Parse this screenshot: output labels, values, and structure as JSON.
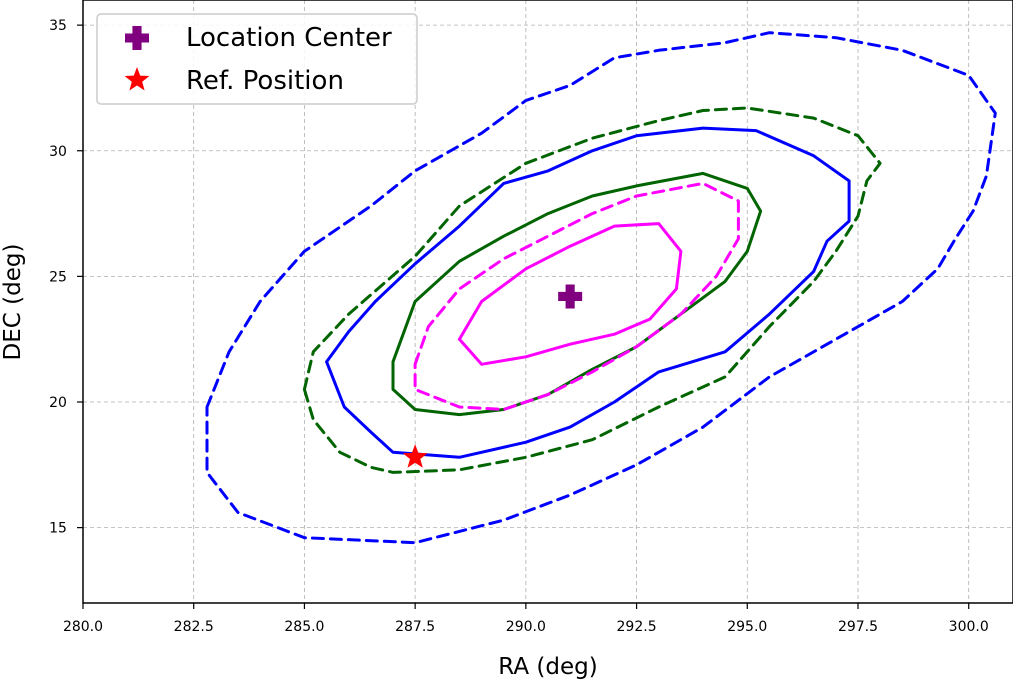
{
  "chart_data": {
    "type": "contour",
    "title": "",
    "xlabel": "RA (deg)",
    "ylabel": "DEC (deg)",
    "xlim": [
      280,
      301
    ],
    "ylim": [
      12,
      36
    ],
    "xticks": [
      "280.0",
      "282.5",
      "285.0",
      "287.5",
      "290.0",
      "292.5",
      "295.0",
      "297.5",
      "300.0"
    ],
    "yticks": [
      "15",
      "20",
      "25",
      "30",
      "35"
    ],
    "grid": true,
    "legend": {
      "placement": "upper-left",
      "entries": [
        {
          "label": "Location Center",
          "marker": "plus",
          "color": "#800080"
        },
        {
          "label": "Ref. Position",
          "marker": "star",
          "color": "#ff0000"
        }
      ]
    },
    "points": [
      {
        "name": "Location Center",
        "x": 291.0,
        "y": 24.2,
        "marker": "plus",
        "color": "#800080"
      },
      {
        "name": "Ref. Position",
        "x": 287.5,
        "y": 17.8,
        "marker": "star",
        "color": "#ff0000"
      }
    ],
    "series": [
      {
        "name": "blue-dashed",
        "color": "#0000ff",
        "style": "dashed",
        "points": [
          [
            282.8,
            19.8
          ],
          [
            283.3,
            22.0
          ],
          [
            284.0,
            24.0
          ],
          [
            285.0,
            26.0
          ],
          [
            286.5,
            27.8
          ],
          [
            287.5,
            29.2
          ],
          [
            289.0,
            30.7
          ],
          [
            290.0,
            32.0
          ],
          [
            291.0,
            32.6
          ],
          [
            292.0,
            33.7
          ],
          [
            293.0,
            34.0
          ],
          [
            294.5,
            34.3
          ],
          [
            295.5,
            34.7
          ],
          [
            297.0,
            34.5
          ],
          [
            298.5,
            34.0
          ],
          [
            300.0,
            33.0
          ],
          [
            300.6,
            31.5
          ],
          [
            300.4,
            29.0
          ],
          [
            300.1,
            27.6
          ],
          [
            299.7,
            26.5
          ],
          [
            299.3,
            25.3
          ],
          [
            298.5,
            24.0
          ],
          [
            297.0,
            22.5
          ],
          [
            295.5,
            21.0
          ],
          [
            294.0,
            19.0
          ],
          [
            292.5,
            17.5
          ],
          [
            291.0,
            16.3
          ],
          [
            289.5,
            15.3
          ],
          [
            287.5,
            14.4
          ],
          [
            285.0,
            14.6
          ],
          [
            283.5,
            15.6
          ],
          [
            282.8,
            17.2
          ],
          [
            282.8,
            19.8
          ]
        ]
      },
      {
        "name": "blue-solid",
        "color": "#0000ff",
        "style": "solid",
        "points": [
          [
            285.5,
            21.6
          ],
          [
            286.0,
            22.8
          ],
          [
            286.6,
            24.0
          ],
          [
            287.5,
            25.5
          ],
          [
            288.5,
            27.0
          ],
          [
            289.5,
            28.7
          ],
          [
            290.5,
            29.2
          ],
          [
            291.5,
            30.0
          ],
          [
            292.5,
            30.6
          ],
          [
            294.0,
            30.9
          ],
          [
            295.2,
            30.8
          ],
          [
            296.5,
            29.8
          ],
          [
            297.3,
            28.8
          ],
          [
            297.3,
            27.2
          ],
          [
            296.8,
            26.4
          ],
          [
            296.5,
            25.2
          ],
          [
            295.5,
            23.5
          ],
          [
            294.5,
            22.0
          ],
          [
            293.0,
            21.2
          ],
          [
            292.0,
            20.0
          ],
          [
            291.0,
            19.0
          ],
          [
            290.0,
            18.4
          ],
          [
            288.5,
            17.8
          ],
          [
            287.0,
            18.0
          ],
          [
            286.5,
            18.8
          ],
          [
            285.9,
            19.8
          ],
          [
            285.5,
            21.6
          ]
        ]
      },
      {
        "name": "green-dashed",
        "color": "#006400",
        "style": "dashed",
        "points": [
          [
            285.0,
            20.5
          ],
          [
            285.2,
            22.0
          ],
          [
            286.0,
            23.5
          ],
          [
            287.5,
            25.8
          ],
          [
            288.5,
            27.8
          ],
          [
            290.0,
            29.5
          ],
          [
            291.5,
            30.5
          ],
          [
            293.0,
            31.2
          ],
          [
            294.0,
            31.6
          ],
          [
            295.0,
            31.7
          ],
          [
            296.5,
            31.3
          ],
          [
            297.5,
            30.6
          ],
          [
            298.0,
            29.5
          ],
          [
            297.7,
            28.8
          ],
          [
            297.5,
            27.4
          ],
          [
            297.0,
            26.0
          ],
          [
            296.5,
            24.8
          ],
          [
            295.5,
            23.0
          ],
          [
            294.5,
            21.0
          ],
          [
            293.0,
            19.8
          ],
          [
            291.5,
            18.5
          ],
          [
            290.0,
            17.8
          ],
          [
            288.5,
            17.3
          ],
          [
            287.0,
            17.2
          ],
          [
            286.5,
            17.4
          ],
          [
            285.8,
            18.0
          ],
          [
            285.2,
            19.3
          ],
          [
            285.0,
            20.5
          ]
        ]
      },
      {
        "name": "green-solid",
        "color": "#006400",
        "style": "solid",
        "points": [
          [
            287.0,
            21.6
          ],
          [
            287.5,
            24.0
          ],
          [
            288.5,
            25.6
          ],
          [
            289.5,
            26.6
          ],
          [
            290.5,
            27.5
          ],
          [
            291.5,
            28.2
          ],
          [
            292.5,
            28.6
          ],
          [
            294.0,
            29.1
          ],
          [
            295.0,
            28.5
          ],
          [
            295.3,
            27.6
          ],
          [
            295.0,
            26.0
          ],
          [
            294.5,
            24.8
          ],
          [
            293.5,
            23.5
          ],
          [
            292.5,
            22.2
          ],
          [
            291.5,
            21.3
          ],
          [
            290.5,
            20.3
          ],
          [
            289.5,
            19.7
          ],
          [
            288.5,
            19.5
          ],
          [
            287.5,
            19.7
          ],
          [
            287.0,
            20.5
          ],
          [
            287.0,
            21.6
          ]
        ]
      },
      {
        "name": "magenta-dashed",
        "color": "#ff00ff",
        "style": "dashed",
        "points": [
          [
            287.5,
            21.5
          ],
          [
            287.8,
            23.0
          ],
          [
            288.5,
            24.5
          ],
          [
            289.5,
            25.7
          ],
          [
            290.5,
            26.6
          ],
          [
            291.5,
            27.5
          ],
          [
            292.5,
            28.2
          ],
          [
            294.0,
            28.7
          ],
          [
            294.8,
            28.0
          ],
          [
            294.8,
            26.5
          ],
          [
            294.3,
            25.0
          ],
          [
            293.5,
            23.5
          ],
          [
            292.5,
            22.2
          ],
          [
            291.5,
            21.2
          ],
          [
            290.5,
            20.3
          ],
          [
            289.5,
            19.7
          ],
          [
            288.5,
            19.8
          ],
          [
            287.5,
            20.5
          ],
          [
            287.5,
            21.5
          ]
        ]
      },
      {
        "name": "magenta-solid",
        "color": "#ff00ff",
        "style": "solid",
        "points": [
          [
            288.5,
            22.5
          ],
          [
            289.0,
            24.0
          ],
          [
            290.0,
            25.3
          ],
          [
            291.0,
            26.2
          ],
          [
            292.0,
            27.0
          ],
          [
            293.0,
            27.1
          ],
          [
            293.5,
            26.0
          ],
          [
            293.4,
            24.5
          ],
          [
            292.8,
            23.3
          ],
          [
            292.0,
            22.7
          ],
          [
            291.0,
            22.3
          ],
          [
            290.0,
            21.8
          ],
          [
            289.0,
            21.5
          ],
          [
            288.5,
            22.5
          ]
        ]
      }
    ]
  }
}
